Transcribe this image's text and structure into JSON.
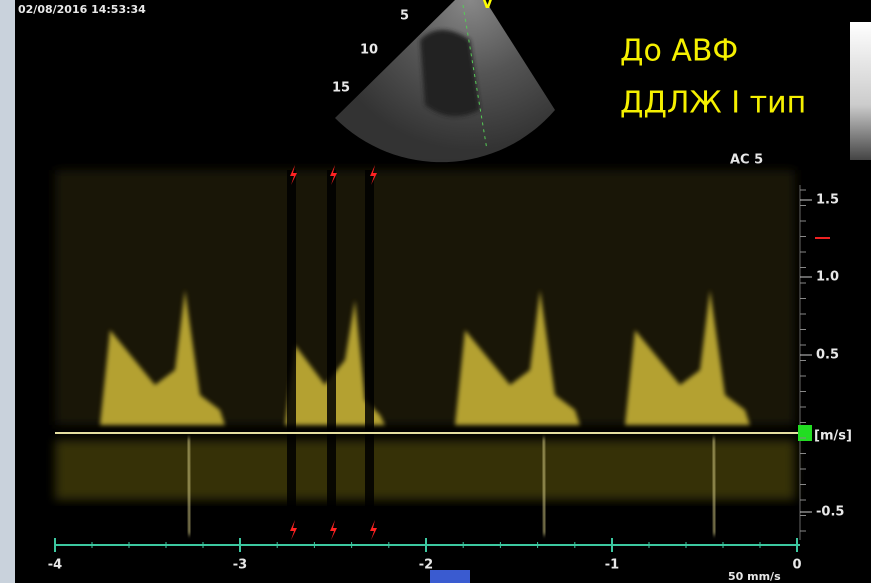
{
  "timestamp": "02/08/2016 14:53:34",
  "overlay": {
    "line1": "До АВФ",
    "line2": "ДДЛЖ I тип"
  },
  "depth_labels": [
    "5",
    "10",
    "15"
  ],
  "probe_label": "AC 5",
  "velocity_scale": {
    "ticks": [
      "1.5",
      "1.0",
      "0.5",
      "-0.5"
    ],
    "unit": "[m/s]"
  },
  "time_axis": {
    "ticks": [
      "-4",
      "-3",
      "-2",
      "-1",
      "0"
    ]
  },
  "sweep_speed": "50 mm/s"
}
